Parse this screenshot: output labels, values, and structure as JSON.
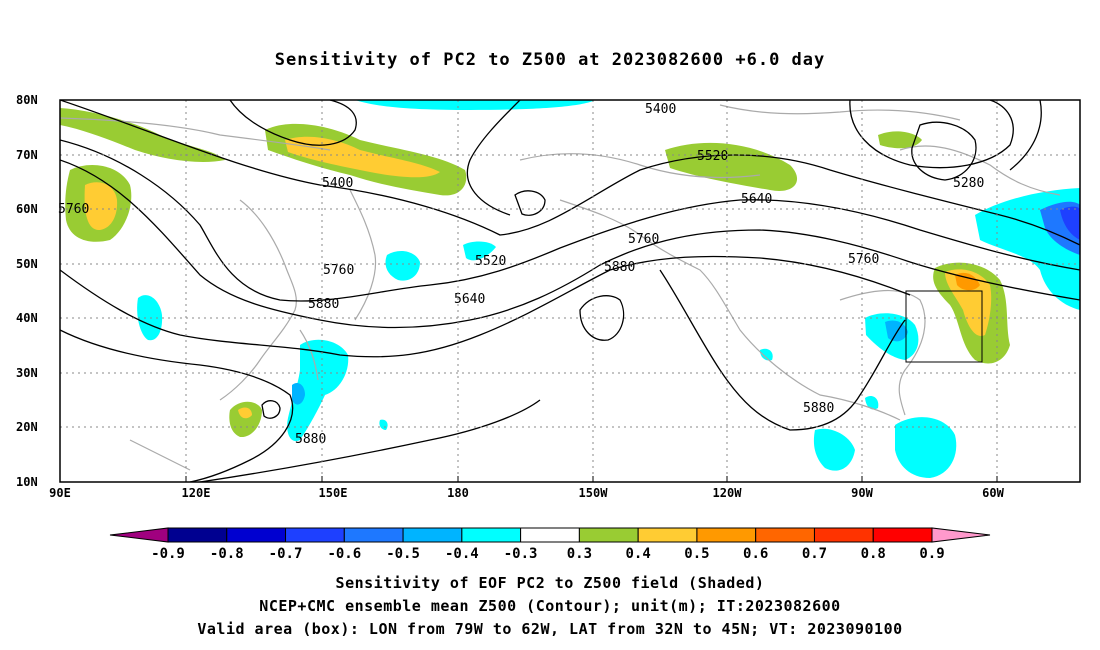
{
  "title": "Sensitivity of PC2 to Z500 at 2023082600 +6.0 day",
  "axes": {
    "lon_labels": [
      "90E",
      "120E",
      "150E",
      "180",
      "150W",
      "120W",
      "90W",
      "60W"
    ],
    "lat_labels": [
      "80N",
      "70N",
      "60N",
      "50N",
      "40N",
      "30N",
      "20N",
      "10N"
    ]
  },
  "contour_labels": [
    "5400",
    "5520",
    "5400",
    "5280",
    "5640",
    "5760",
    "5760",
    "5760",
    "5520",
    "5880",
    "5880",
    "5640",
    "5760",
    "5880",
    "5880"
  ],
  "colorbar": {
    "labels": [
      "-0.9",
      "-0.8",
      "-0.7",
      "-0.6",
      "-0.5",
      "-0.4",
      "-0.3",
      "0.3",
      "0.4",
      "0.5",
      "0.6",
      "0.7",
      "0.8",
      "0.9"
    ],
    "colors": [
      "#a0007f",
      "#000090",
      "#0000d0",
      "#1e40ff",
      "#1e78ff",
      "#00b4ff",
      "#00ffff",
      "#ffffff",
      "#99cc33",
      "#ffcc33",
      "#ff9900",
      "#ff6600",
      "#ff3300",
      "#ff0000",
      "#ff99cc"
    ]
  },
  "valid_box": {
    "lon_w": -79,
    "lon_e": -62,
    "lat_s": 32,
    "lat_n": 45
  },
  "caption": {
    "line1": "Sensitivity of EOF PC2 to Z500 field (Shaded)",
    "line2": "NCEP+CMC ensemble mean Z500 (Contour); unit(m); IT:2023082600",
    "line3": "Valid area (box): LON from 79W to 62W, LAT from 32N to 45N; VT: 2023090100"
  }
}
